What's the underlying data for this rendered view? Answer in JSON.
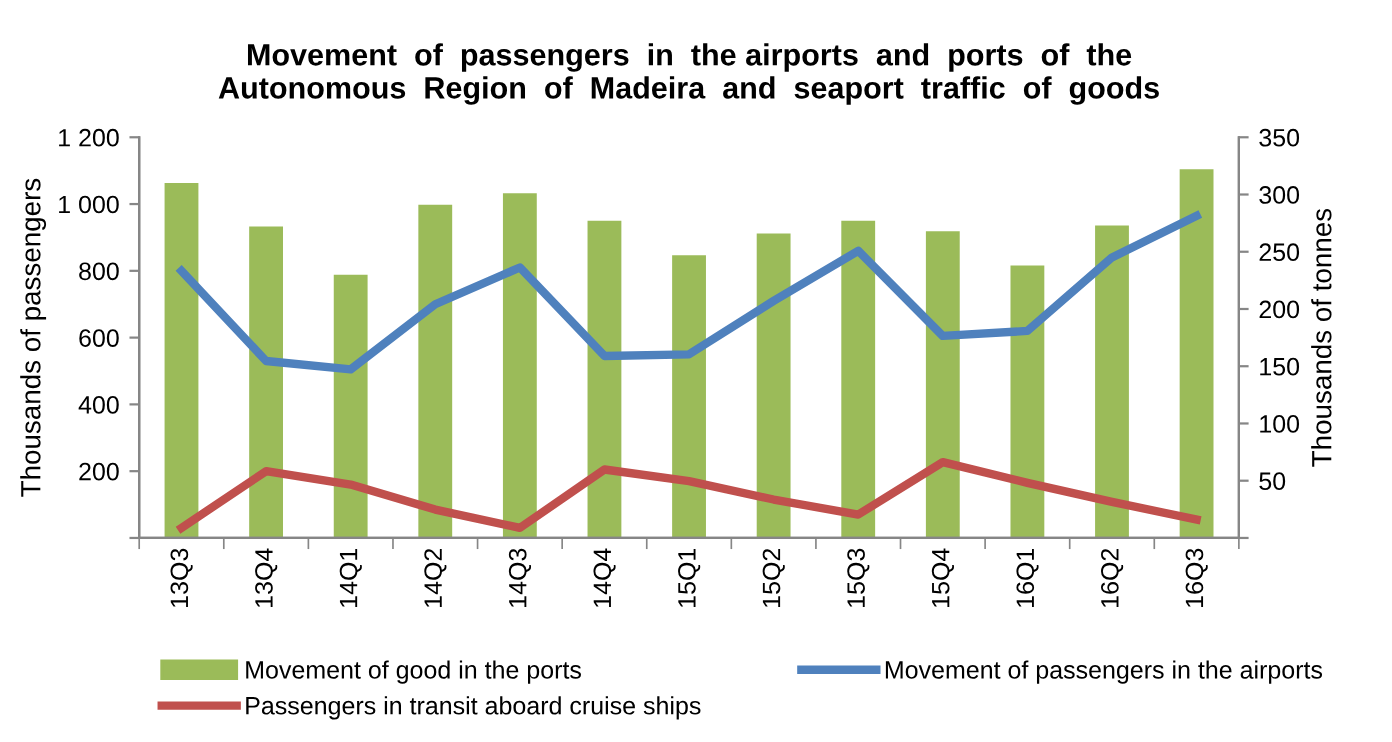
{
  "chart_data": {
    "type": "bar",
    "title": "Movement  of  passengers  in  the airports  and  ports  of  the\nAutonomous  Region  of  Madeira  and  seaport  traffic  of  goods",
    "categories": [
      "13Q3",
      "13Q4",
      "14Q1",
      "14Q2",
      "14Q3",
      "14Q4",
      "15Q1",
      "15Q2",
      "15Q3",
      "15Q4",
      "16Q1",
      "16Q2",
      "16Q3"
    ],
    "series": [
      {
        "name": "Movement of good in the ports",
        "axis": "y2",
        "color": "#9bbb59",
        "values": [
          310,
          272,
          230,
          291,
          301,
          277,
          247,
          266,
          277,
          268,
          238,
          273,
          322
        ]
      },
      {
        "name": "Movement of passengers in the airports",
        "type": "line",
        "color": "#4f81bd",
        "values": [
          800,
          530,
          505,
          700,
          810,
          545,
          550,
          710,
          860,
          605,
          620,
          840,
          965
        ]
      },
      {
        "name": "Passengers in transit aboard cruise ships",
        "type": "line",
        "color": "#c0504d",
        "values": [
          30,
          200,
          160,
          85,
          30,
          205,
          170,
          115,
          70,
          227,
          165,
          108,
          55
        ]
      }
    ],
    "ylabel": "Thousands of passengers",
    "y2label": "Thousands of tonnes",
    "ylim": [
      0,
      1200
    ],
    "yticks": [
      {
        "value": 0,
        "label": null
      },
      {
        "value": 200,
        "label": "200"
      },
      {
        "value": 400,
        "label": "400"
      },
      {
        "value": 600,
        "label": "600"
      },
      {
        "value": 800,
        "label": "800"
      },
      {
        "value": 1000,
        "label": "1 000"
      },
      {
        "value": 1200,
        "label": "1 200"
      }
    ],
    "y2lim": [
      0,
      350
    ],
    "y2ticks": [
      {
        "value": 0,
        "label": null
      },
      50,
      100,
      150,
      200,
      250,
      300,
      350
    ],
    "grid": false,
    "legend": "bottom"
  }
}
